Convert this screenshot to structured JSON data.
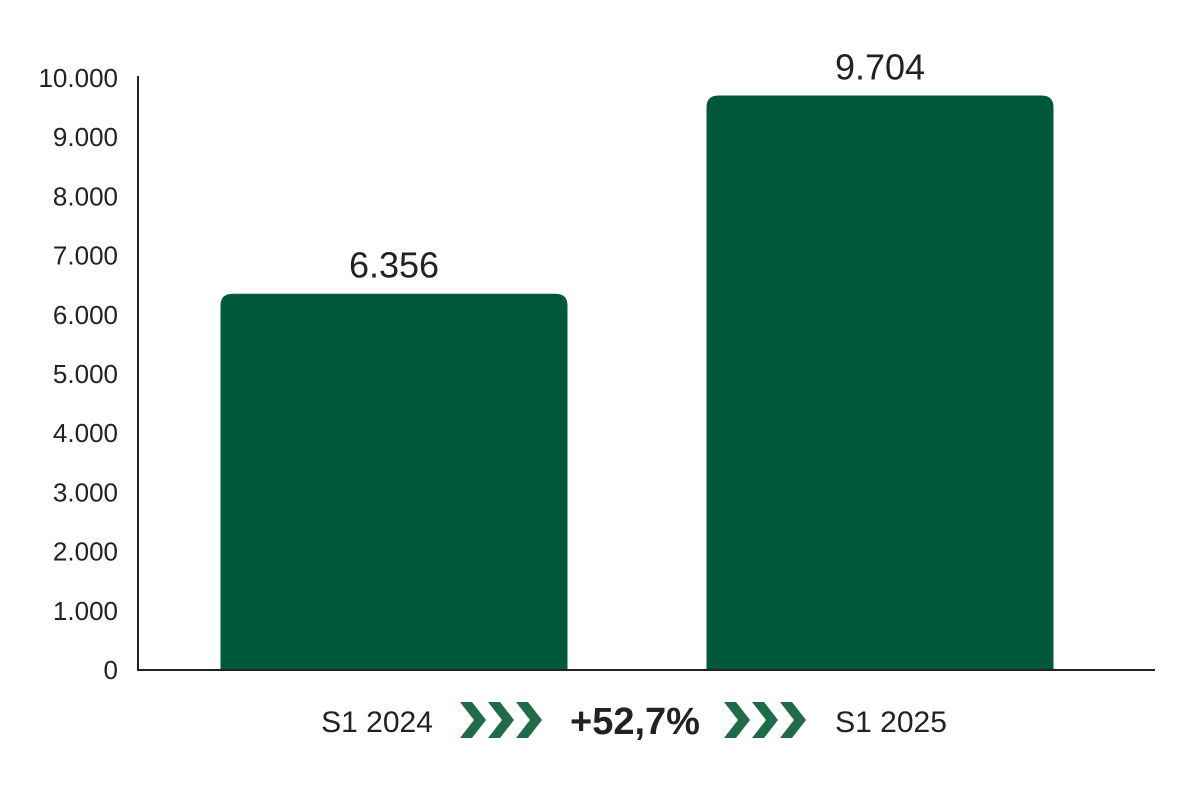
{
  "chart_data": {
    "type": "bar",
    "categories": [
      "S1 2024",
      "S1 2025"
    ],
    "values": [
      6356,
      9704
    ],
    "value_labels": [
      "6.356",
      "9.704"
    ],
    "yticks": [
      0,
      1000,
      2000,
      3000,
      4000,
      5000,
      6000,
      7000,
      8000,
      9000,
      10000
    ],
    "ytick_labels": [
      "0",
      "1.000",
      "2.000",
      "3.000",
      "4.000",
      "5.000",
      "6.000",
      "7.000",
      "8.000",
      "9.000",
      "10.000"
    ],
    "ylim": [
      0,
      10000
    ],
    "grid": false,
    "change_label": "+52,7%",
    "bar_color": "#02593A",
    "arrow_color": "#1F6B47",
    "text_color": "#222222",
    "axis_color": "#222222"
  }
}
